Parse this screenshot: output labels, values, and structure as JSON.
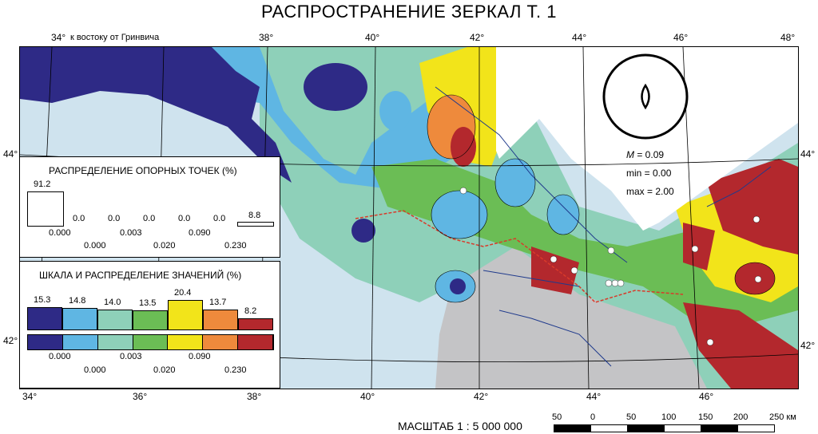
{
  "title": "РАСПРОСТРАНЕНИЕ ЗЕРКАЛ Т. 1",
  "longitude_note": "к востоку от Гринвича",
  "top_ticks": [
    "34°",
    "38°",
    "40°",
    "42°",
    "44°",
    "46°",
    "48°"
  ],
  "bottom_ticks": [
    "34°",
    "36°",
    "38°",
    "40°",
    "42°",
    "44°",
    "46°"
  ],
  "left_lat": [
    "44°",
    "42°"
  ],
  "right_lat": [
    "44°",
    "42°"
  ],
  "stats": {
    "m_label": "M",
    "m_value": "= 0.09",
    "min": "min = 0.00",
    "max": "max = 2.00"
  },
  "points_panel": {
    "title": "РАСПРЕДЕЛЕНИЕ ОПОРНЫХ ТОЧЕК (%)",
    "values": [
      "91.2",
      "0.0",
      "0.0",
      "0.0",
      "0.0",
      "0.0",
      "8.8"
    ],
    "breaks_low": [
      "0.000",
      "0.003",
      "0.090"
    ],
    "breaks_high": [
      "0.000",
      "0.020",
      "0.230"
    ]
  },
  "scale_panel": {
    "title": "ШКАЛА И РАСПРЕДЕЛЕНИЕ ЗНАЧЕНИЙ (%)",
    "values": [
      "15.3",
      "14.8",
      "14.0",
      "13.5",
      "20.4",
      "13.7",
      "8.2"
    ],
    "colors": [
      "#2e2a86",
      "#5fb6e3",
      "#8ed0b9",
      "#6bbd55",
      "#f2e41a",
      "#ee8a3c",
      "#b3282d"
    ],
    "breaks_low": [
      "0.000",
      "0.003",
      "0.090"
    ],
    "breaks_high": [
      "0.000",
      "0.020",
      "0.230"
    ]
  },
  "scale_bar": {
    "title": "МАСШТАБ 1 : 5 000 000",
    "labels": [
      "50",
      "0",
      "50",
      "100",
      "150",
      "200",
      "250 км"
    ]
  }
}
